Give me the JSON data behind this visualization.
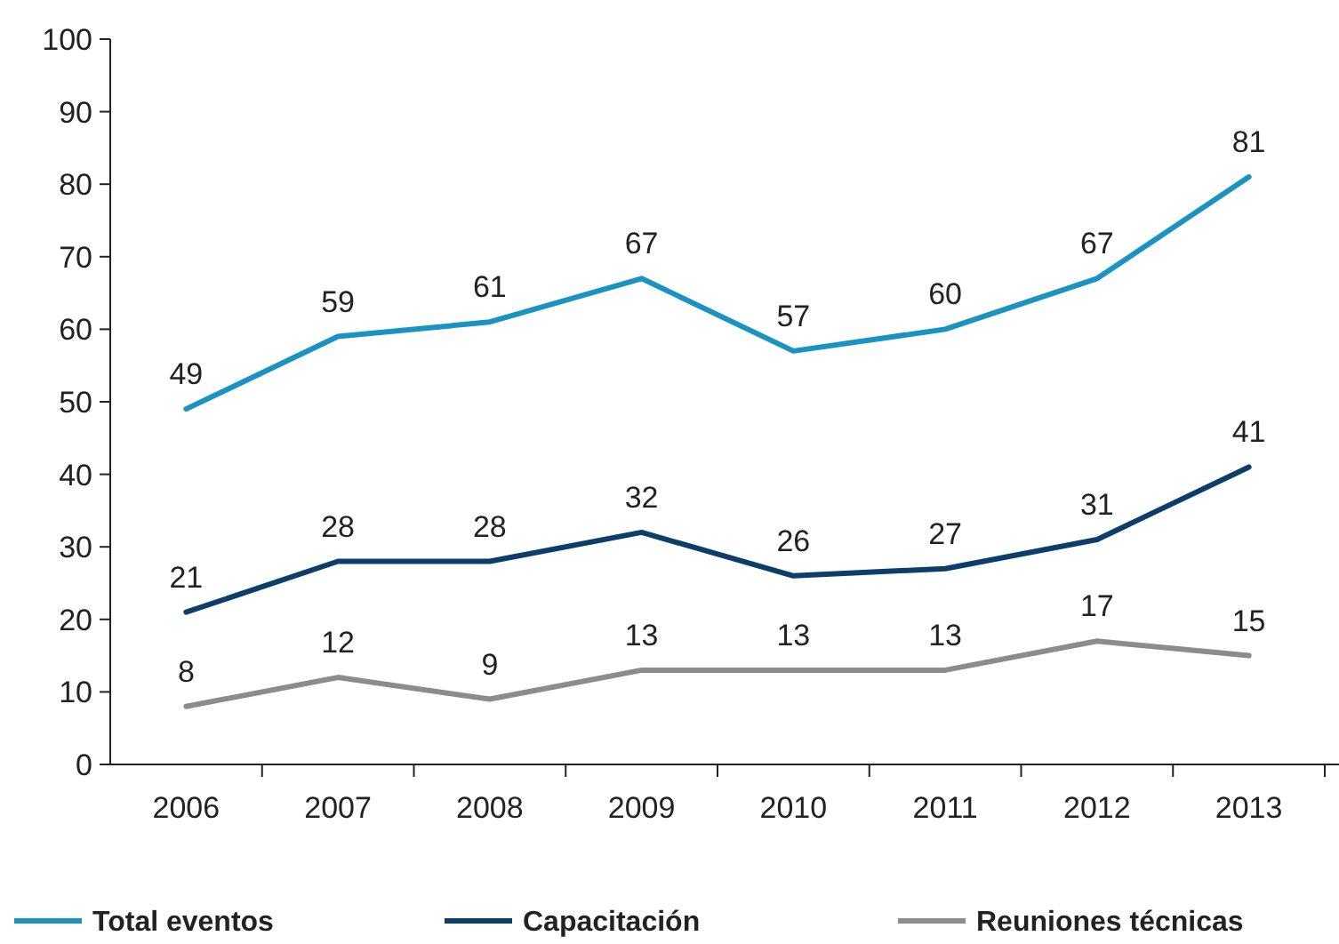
{
  "chart_data": {
    "type": "line",
    "categories": [
      "2006",
      "2007",
      "2008",
      "2009",
      "2010",
      "2011",
      "2012",
      "2013"
    ],
    "series": [
      {
        "name": "Total eventos",
        "color": "#1a92c2",
        "values": [
          49,
          59,
          61,
          67,
          57,
          60,
          67,
          81
        ]
      },
      {
        "name": "Capacitación",
        "color": "#0d3d6b",
        "values": [
          21,
          28,
          28,
          32,
          26,
          27,
          31,
          41
        ]
      },
      {
        "name": "Reuniones técnicas",
        "color": "#8c8c8c",
        "values": [
          8,
          12,
          9,
          13,
          13,
          13,
          17,
          15
        ]
      }
    ],
    "ylim": [
      0,
      100
    ],
    "yticks": [
      0,
      10,
      20,
      30,
      40,
      50,
      60,
      70,
      80,
      90,
      100
    ],
    "data_labels": true,
    "grid": false,
    "legend": "bottom",
    "marker": "none",
    "line_style": "solid"
  }
}
